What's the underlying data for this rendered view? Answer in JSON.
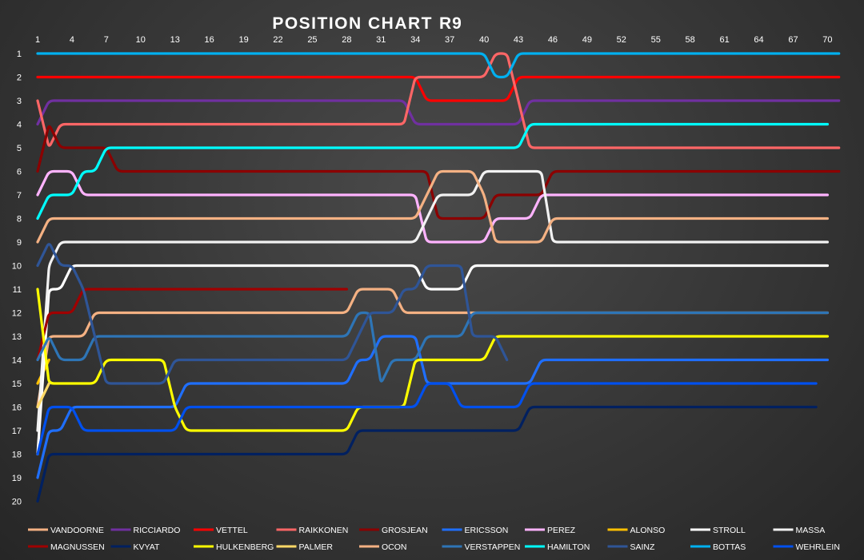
{
  "chart_data": {
    "type": "line",
    "title": "POSITION CHART",
    "subtitle": "R9",
    "x_ticks": [
      1,
      4,
      7,
      10,
      13,
      16,
      19,
      22,
      25,
      28,
      31,
      34,
      37,
      40,
      43,
      46,
      49,
      52,
      55,
      58,
      61,
      64,
      67,
      70
    ],
    "x_tick_labels": [
      "1",
      "4",
      "7",
      "10",
      "13",
      "16",
      "19",
      "22",
      "25",
      "28",
      "31",
      "34",
      "37",
      "40",
      "43",
      "46",
      "49",
      "52",
      "55",
      "58",
      "61",
      "64",
      "67",
      "70"
    ],
    "y_ticks": [
      1,
      2,
      3,
      4,
      5,
      6,
      7,
      8,
      9,
      10,
      11,
      12,
      13,
      14,
      15,
      16,
      17,
      18,
      19,
      20
    ],
    "y_tick_labels": [
      "1",
      "2",
      "3",
      "4",
      "5",
      "6",
      "7",
      "8",
      "9",
      "10",
      "11",
      "12",
      "13",
      "14",
      "15",
      "16",
      "17",
      "18",
      "19",
      "20"
    ],
    "xlim": [
      1,
      71
    ],
    "ylim": [
      1,
      20
    ],
    "y_inverted": true,
    "x_axis_position": "top",
    "grid": false,
    "legend_position": "bottom",
    "series": [
      {
        "name": "VANDOORNE",
        "color": "#f4b183",
        "points": [
          [
            1,
            16
          ],
          [
            2,
            13
          ],
          [
            3,
            13
          ],
          [
            5,
            13
          ],
          [
            6,
            12
          ],
          [
            28,
            12
          ],
          [
            29,
            11
          ],
          [
            32,
            11
          ],
          [
            33,
            12
          ],
          [
            70,
            12
          ]
        ]
      },
      {
        "name": "RICCIARDO",
        "color": "#7030a0",
        "points": [
          [
            1,
            4
          ],
          [
            2,
            3
          ],
          [
            33,
            3
          ],
          [
            34,
            4
          ],
          [
            43,
            4
          ],
          [
            44,
            3
          ],
          [
            71,
            3
          ]
        ]
      },
      {
        "name": "VETTEL",
        "color": "#ff0000",
        "points": [
          [
            1,
            2
          ],
          [
            34,
            2
          ],
          [
            35,
            3
          ],
          [
            42,
            3
          ],
          [
            43,
            2
          ],
          [
            71,
            2
          ]
        ]
      },
      {
        "name": "RAIKKONEN",
        "color": "#ff6666",
        "points": [
          [
            1,
            3
          ],
          [
            2,
            5
          ],
          [
            3,
            4
          ],
          [
            33,
            4
          ],
          [
            34,
            2
          ],
          [
            40,
            2
          ],
          [
            41,
            1
          ],
          [
            42,
            1
          ],
          [
            43,
            3
          ],
          [
            44,
            5
          ],
          [
            71,
            5
          ]
        ]
      },
      {
        "name": "GROSJEAN",
        "color": "#8b0000",
        "points": [
          [
            1,
            6
          ],
          [
            2,
            4
          ],
          [
            3,
            5
          ],
          [
            7,
            5
          ],
          [
            8,
            6
          ],
          [
            35,
            6
          ],
          [
            36,
            8
          ],
          [
            40,
            8
          ],
          [
            41,
            7
          ],
          [
            45,
            7
          ],
          [
            46,
            6
          ],
          [
            71,
            6
          ]
        ]
      },
      {
        "name": "ERICSSON",
        "color": "#1f6fff",
        "points": [
          [
            1,
            19
          ],
          [
            2,
            17
          ],
          [
            3,
            17
          ],
          [
            4,
            16
          ],
          [
            13,
            16
          ],
          [
            14,
            15
          ],
          [
            28,
            15
          ],
          [
            29,
            14
          ],
          [
            30,
            14
          ],
          [
            31,
            13
          ],
          [
            34,
            13
          ],
          [
            35,
            15
          ],
          [
            44,
            15
          ],
          [
            45,
            14
          ],
          [
            70,
            14
          ]
        ]
      },
      {
        "name": "PEREZ",
        "color": "#ffb3ff",
        "points": [
          [
            1,
            7
          ],
          [
            2,
            6
          ],
          [
            4,
            6
          ],
          [
            5,
            7
          ],
          [
            34,
            7
          ],
          [
            35,
            9
          ],
          [
            40,
            9
          ],
          [
            41,
            8
          ],
          [
            44,
            8
          ],
          [
            45,
            7
          ],
          [
            70,
            7
          ]
        ]
      },
      {
        "name": "ALONSO",
        "color": "#ffc000",
        "points": [
          [
            1,
            15
          ],
          [
            2,
            14
          ]
        ]
      },
      {
        "name": "STROLL",
        "color": "#ffffff",
        "points": [
          [
            1,
            18
          ],
          [
            2,
            11
          ],
          [
            3,
            11
          ],
          [
            4,
            10
          ],
          [
            34,
            10
          ],
          [
            35,
            11
          ],
          [
            38,
            11
          ],
          [
            39,
            10
          ],
          [
            70,
            10
          ]
        ]
      },
      {
        "name": "MASSA",
        "color": "#f2f2f2",
        "points": [
          [
            1,
            17
          ],
          [
            2,
            10
          ],
          [
            3,
            9
          ],
          [
            34,
            9
          ],
          [
            36,
            7
          ],
          [
            39,
            7
          ],
          [
            40,
            6
          ],
          [
            45,
            6
          ],
          [
            46,
            9
          ],
          [
            70,
            9
          ]
        ]
      },
      {
        "name": "MAGNUSSEN",
        "color": "#a00000",
        "points": [
          [
            1,
            14
          ],
          [
            2,
            12
          ],
          [
            4,
            12
          ],
          [
            5,
            11
          ],
          [
            28,
            11
          ]
        ]
      },
      {
        "name": "KVYAT",
        "color": "#002060",
        "points": [
          [
            1,
            20
          ],
          [
            2,
            18
          ],
          [
            28,
            18
          ],
          [
            29,
            17
          ],
          [
            43,
            17
          ],
          [
            44,
            16
          ],
          [
            69,
            16
          ]
        ]
      },
      {
        "name": "HULKENBERG",
        "color": "#ffff00",
        "points": [
          [
            1,
            11
          ],
          [
            2,
            15
          ],
          [
            6,
            15
          ],
          [
            7,
            14
          ],
          [
            12,
            14
          ],
          [
            13,
            16
          ],
          [
            14,
            17
          ],
          [
            28,
            17
          ],
          [
            29,
            16
          ],
          [
            33,
            16
          ],
          [
            34,
            14
          ],
          [
            40,
            14
          ],
          [
            41,
            13
          ],
          [
            70,
            13
          ]
        ]
      },
      {
        "name": "PALMER",
        "color": "#ffd966",
        "points": [
          [
            1,
            16
          ],
          [
            2,
            15
          ]
        ]
      },
      {
        "name": "OCON",
        "color": "#f4b183",
        "points": [
          [
            1,
            9
          ],
          [
            2,
            8
          ],
          [
            34,
            8
          ],
          [
            35,
            7
          ],
          [
            36,
            6
          ],
          [
            39,
            6
          ],
          [
            40,
            7
          ],
          [
            41,
            9
          ],
          [
            45,
            9
          ],
          [
            46,
            8
          ],
          [
            70,
            8
          ]
        ]
      },
      {
        "name": "VERSTAPPEN",
        "color": "#2e75b6",
        "points": [
          [
            1,
            14
          ],
          [
            2,
            13
          ],
          [
            3,
            14
          ],
          [
            5,
            14
          ],
          [
            6,
            13
          ],
          [
            28,
            13
          ],
          [
            29,
            12
          ],
          [
            30,
            12
          ],
          [
            31,
            15
          ],
          [
            32,
            14
          ],
          [
            34,
            14
          ],
          [
            35,
            13
          ],
          [
            38,
            13
          ],
          [
            39,
            12
          ],
          [
            70,
            12
          ]
        ]
      },
      {
        "name": "HAMILTON",
        "color": "#00ffff",
        "points": [
          [
            1,
            8
          ],
          [
            2,
            7
          ],
          [
            4,
            7
          ],
          [
            5,
            6
          ],
          [
            6,
            6
          ],
          [
            7,
            5
          ],
          [
            43,
            5
          ],
          [
            44,
            4
          ],
          [
            70,
            4
          ]
        ]
      },
      {
        "name": "SAINZ",
        "color": "#2f5597",
        "points": [
          [
            1,
            10
          ],
          [
            2,
            9
          ],
          [
            3,
            10
          ],
          [
            4,
            10
          ],
          [
            5,
            11
          ],
          [
            6,
            13
          ],
          [
            7,
            15
          ],
          [
            12,
            15
          ],
          [
            13,
            14
          ],
          [
            28,
            14
          ],
          [
            29,
            13
          ],
          [
            30,
            12
          ],
          [
            32,
            12
          ],
          [
            33,
            11
          ],
          [
            34,
            11
          ],
          [
            35,
            10
          ],
          [
            38,
            10
          ],
          [
            39,
            13
          ],
          [
            41,
            13
          ],
          [
            42,
            14
          ]
        ]
      },
      {
        "name": "BOTTAS",
        "color": "#00b0f0",
        "points": [
          [
            1,
            1
          ],
          [
            40,
            1
          ],
          [
            41,
            2
          ],
          [
            42,
            2
          ],
          [
            43,
            1
          ],
          [
            71,
            1
          ]
        ]
      },
      {
        "name": "WEHRLEIN",
        "color": "#0050ef",
        "points": [
          [
            1,
            18
          ],
          [
            2,
            16
          ],
          [
            4,
            16
          ],
          [
            5,
            17
          ],
          [
            13,
            17
          ],
          [
            14,
            16
          ],
          [
            33,
            16
          ],
          [
            34,
            16
          ],
          [
            35,
            15
          ],
          [
            37,
            15
          ],
          [
            38,
            16
          ],
          [
            43,
            16
          ],
          [
            44,
            15
          ],
          [
            69,
            15
          ]
        ]
      }
    ]
  }
}
